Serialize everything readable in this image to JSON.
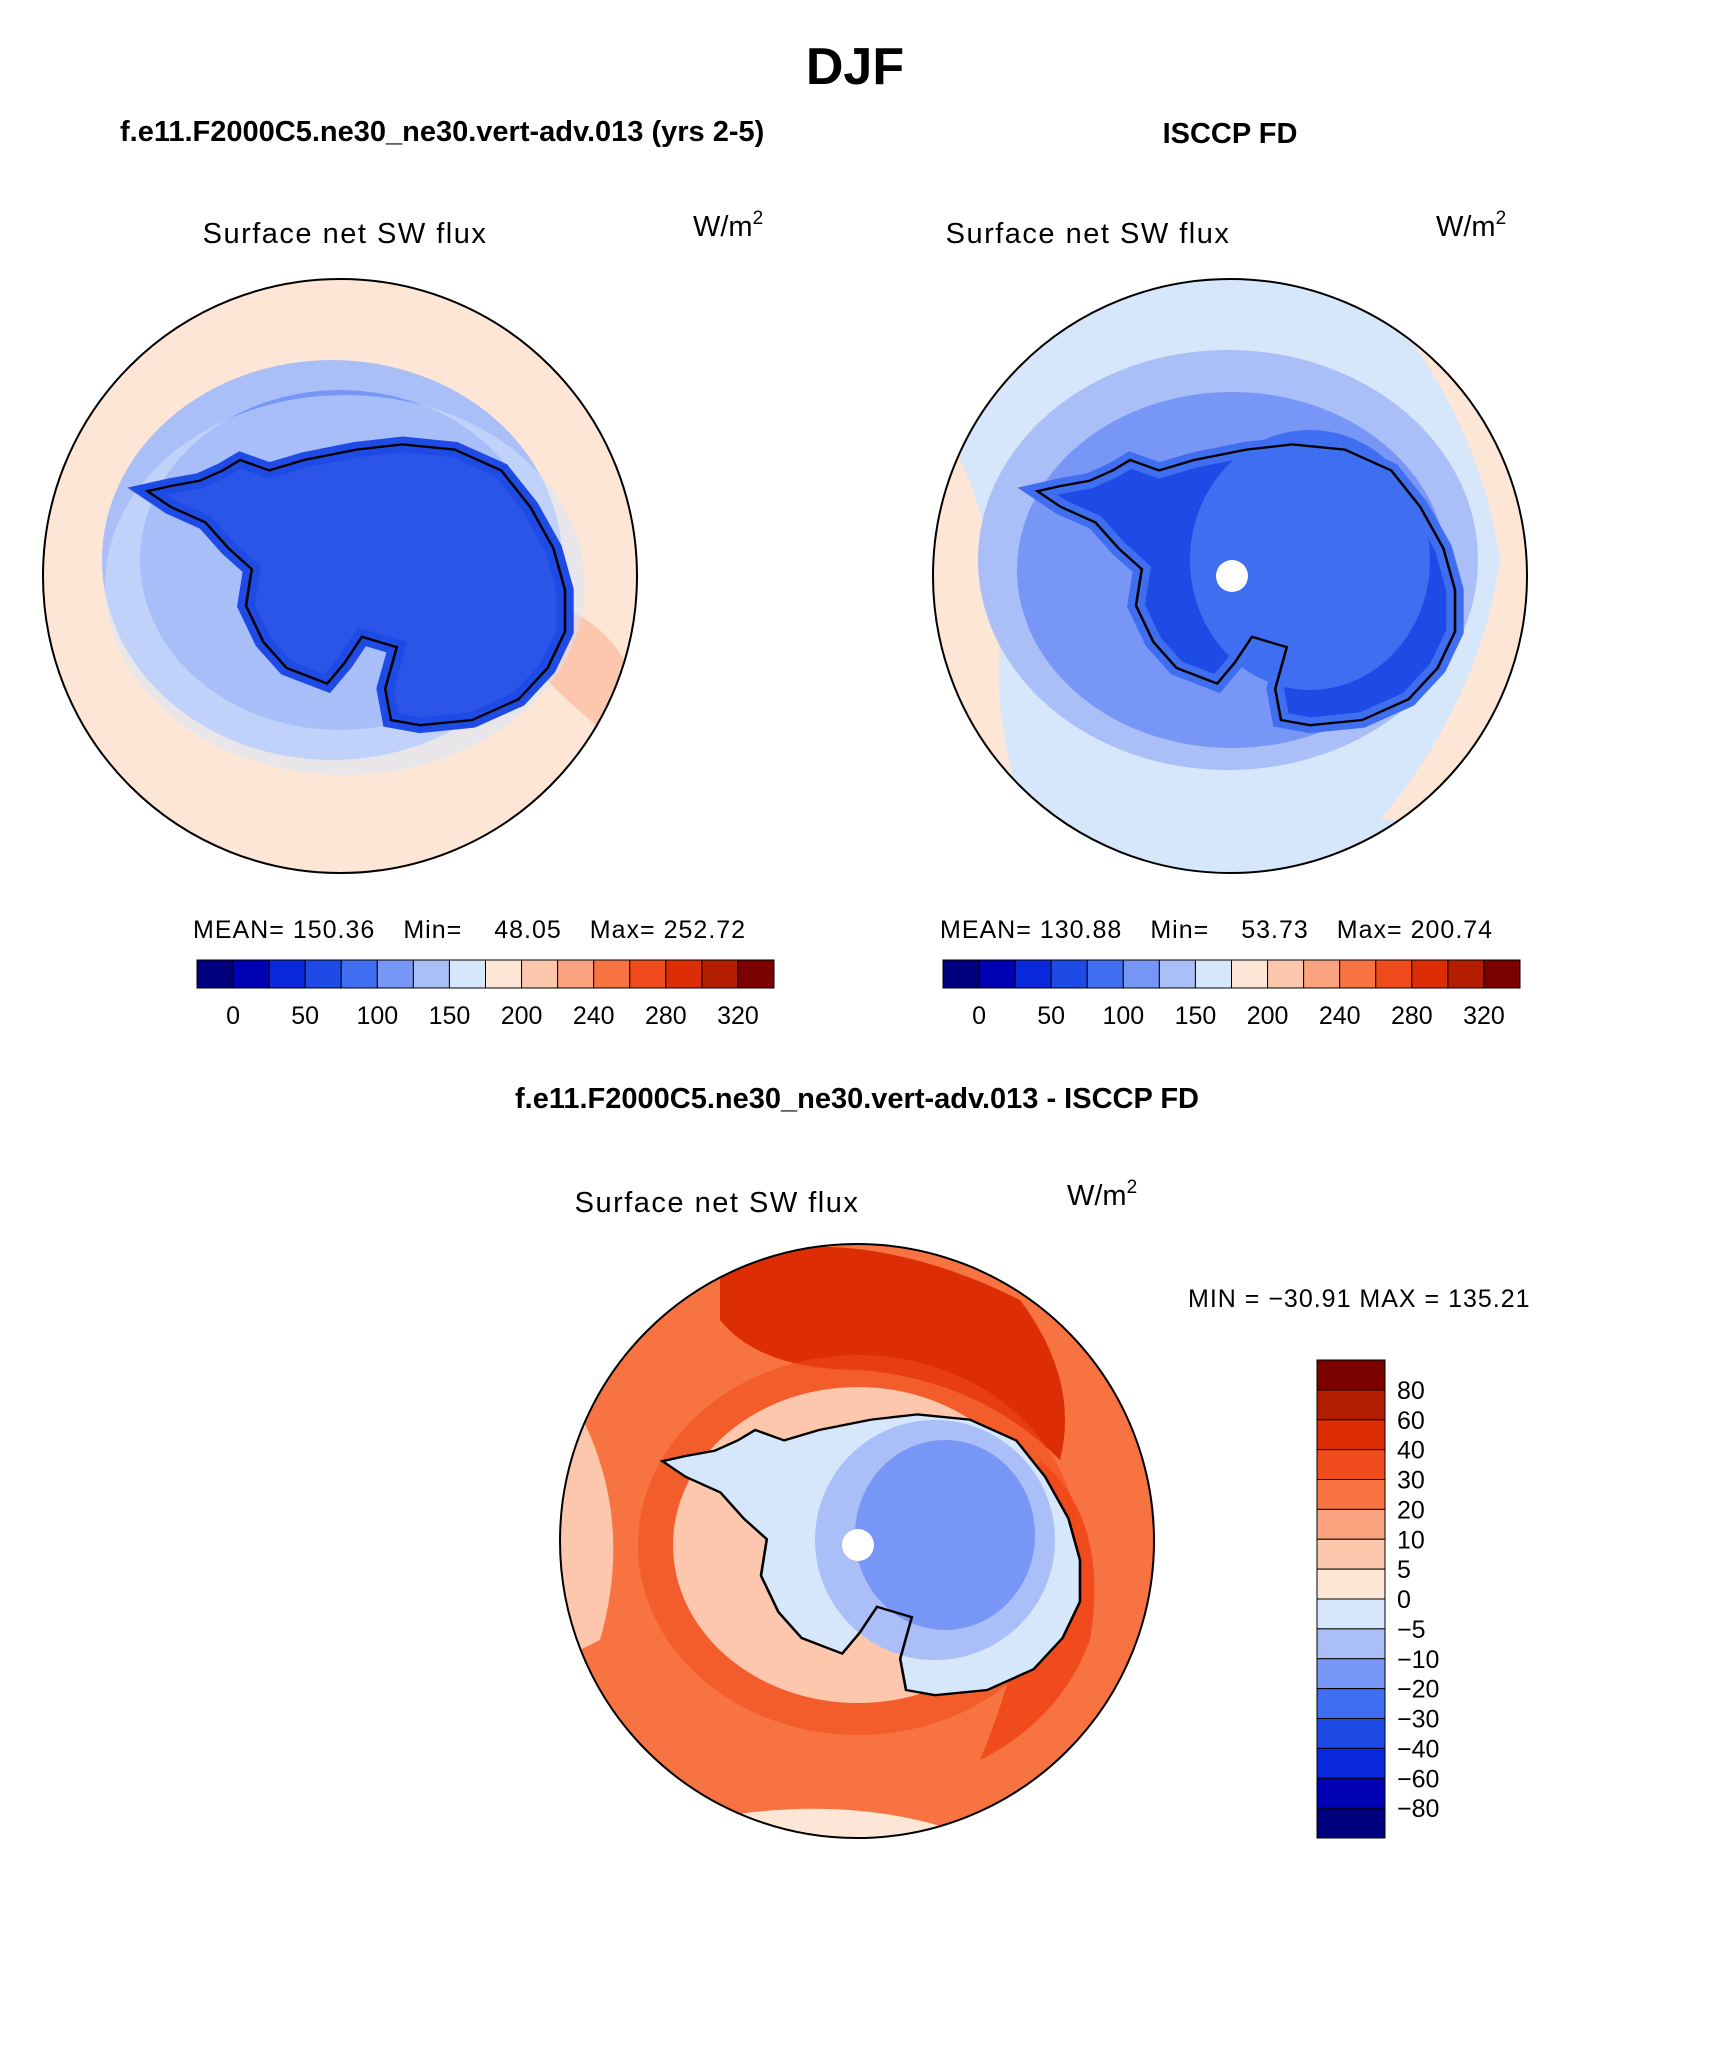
{
  "season": "DJF",
  "palette": {
    "bg": "#ffffff",
    "line": "#000000",
    "land": "#2b55e8",
    "land_inner": "#3e72f0",
    "ocean_warm": "#fde6d6",
    "hole": "#ffffff"
  },
  "panels": [
    {
      "heading": "f.e11.F2000C5.ne30_ne30.vert-adv.013 (yrs 2-5)",
      "variable": "Surface net SW flux",
      "units_base": "W/m",
      "units_exp": "2",
      "stats": {
        "mean_label": "MEAN=",
        "mean": "150.36",
        "min_label": "Min=",
        "min": "48.05",
        "max_label": "Max=",
        "max": "252.72"
      }
    },
    {
      "heading": "ISCCP FD",
      "variable": "Surface net SW flux",
      "units_base": "W/m",
      "units_exp": "2",
      "stats": {
        "mean_label": "MEAN=",
        "mean": "130.88",
        "min_label": "Min=",
        "min": "53.73",
        "max_label": "Max=",
        "max": "200.74"
      }
    }
  ],
  "diff_panel": {
    "heading": "f.e11.F2000C5.ne30_ne30.vert-adv.013 - ISCCP FD",
    "variable": "Surface net SW flux",
    "units_base": "W/m",
    "units_exp": "2",
    "minmax": "MIN = −30.91  MAX = 135.21"
  },
  "chart_data": [
    {
      "type": "heatmap",
      "projection": "south polar stereographic",
      "title": "Surface net SW flux",
      "units": "W/m2",
      "mean": 150.36,
      "min": 48.05,
      "max": 252.72,
      "colorbar": {
        "colors": [
          "#00007f",
          "#0000b4",
          "#0a28dc",
          "#1e4be6",
          "#3f6ef0",
          "#7896f5",
          "#aabef8",
          "#d6e6fb",
          "#fde6d6",
          "#fcc7ad",
          "#fba27e",
          "#f77342",
          "#f04b1c",
          "#dc2d05",
          "#b41e00",
          "#7d0000"
        ],
        "tick_labels": [
          "0",
          "50",
          "100",
          "150",
          "200",
          "240",
          "280",
          "320"
        ]
      }
    },
    {
      "type": "heatmap",
      "projection": "south polar stereographic",
      "title": "Surface net SW flux",
      "units": "W/m2",
      "mean": 130.88,
      "min": 53.73,
      "max": 200.74,
      "colorbar": {
        "colors": [
          "#00007f",
          "#0000b4",
          "#0a28dc",
          "#1e4be6",
          "#3f6ef0",
          "#7896f5",
          "#aabef8",
          "#d6e6fb",
          "#fde6d6",
          "#fcc7ad",
          "#fba27e",
          "#f77342",
          "#f04b1c",
          "#dc2d05",
          "#b41e00",
          "#7d0000"
        ],
        "tick_labels": [
          "0",
          "50",
          "100",
          "150",
          "200",
          "240",
          "280",
          "320"
        ]
      }
    },
    {
      "type": "heatmap",
      "projection": "south polar stereographic",
      "title": "Surface net SW flux",
      "units": "W/m2",
      "min": -30.91,
      "max": 135.21,
      "colorbar": {
        "orientation": "vertical",
        "colors_top_to_bottom": [
          "#7d0000",
          "#b41e00",
          "#dc2d05",
          "#f04b1c",
          "#f77342",
          "#fba27e",
          "#fcc7ad",
          "#fde6d6",
          "#d6e6fb",
          "#aabef8",
          "#7896f5",
          "#3f6ef0",
          "#1e4be6",
          "#0a28dc",
          "#0000b4",
          "#00007f"
        ],
        "tick_labels_top_to_bottom": [
          "80",
          "60",
          "40",
          "30",
          "20",
          "10",
          "5",
          "0",
          "−5",
          "−10",
          "−20",
          "−30",
          "−40",
          "−60",
          "−80"
        ]
      }
    }
  ]
}
